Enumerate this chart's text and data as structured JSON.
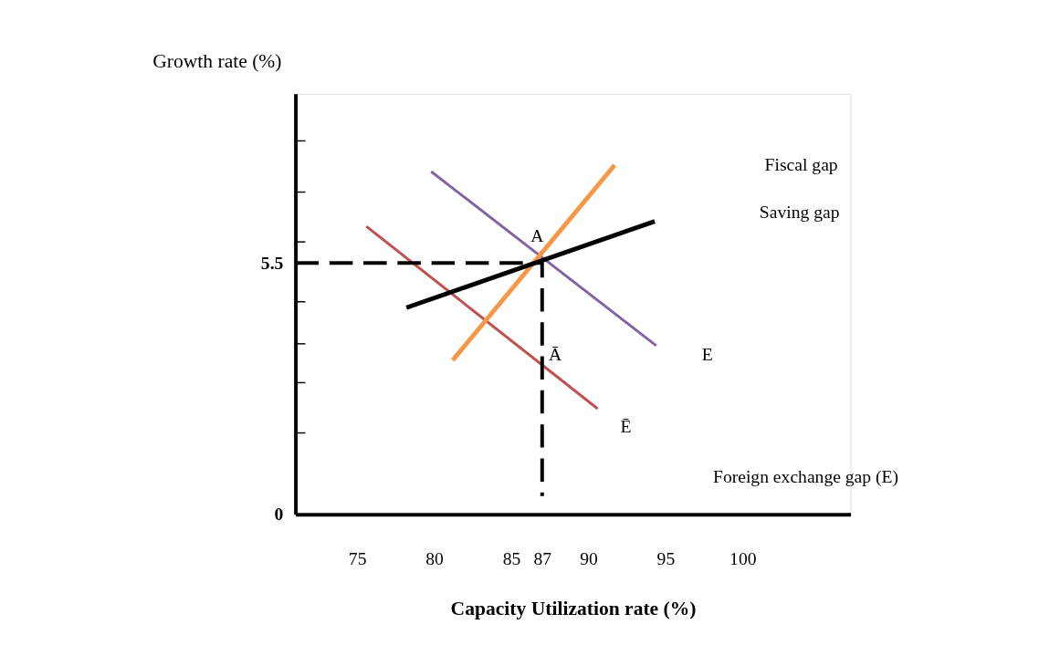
{
  "chart_data": {
    "type": "line",
    "xlabel": "Capacity Utilization rate (%)",
    "ylabel": "Growth rate (%)",
    "xlim": [
      71,
      107
    ],
    "xticks": [
      75,
      80,
      85,
      87,
      90,
      95,
      100
    ],
    "ylim": [
      0,
      9.2
    ],
    "yticks": [
      0,
      {
        "value": 1.78,
        "label": null
      },
      {
        "value": 2.88,
        "label": null
      },
      {
        "value": 3.73,
        "label": null
      },
      {
        "value": 4.65,
        "label": null
      },
      5.5,
      {
        "value": 5.96,
        "label": null
      },
      {
        "value": 7.05,
        "label": null
      },
      {
        "value": 8.17,
        "label": null
      }
    ],
    "grid": false,
    "marker": "none",
    "series": [
      {
        "color": "#8064a2",
        "x": [
          79.8,
          94.4
        ],
        "values": [
          7.5,
          3.69
        ]
      },
      {
        "color": "#c0504d",
        "x": [
          75.6,
          90.6
        ],
        "values": [
          6.3,
          2.31
        ]
      },
      {
        "color": "#f79646",
        "x": [
          81.2,
          91.7
        ],
        "values": [
          3.37,
          7.64
        ]
      },
      {
        "color": "#000000",
        "x": [
          78.2,
          94.3
        ],
        "values": [
          4.52,
          6.41
        ]
      },
      {
        "color": "#000000",
        "line_style": "dashed",
        "x": [
          71,
          87,
          87
        ],
        "values": [
          5.5,
          5.5,
          0.4
        ]
      }
    ],
    "annotations": [
      "A",
      "Ā",
      "E",
      "Ē",
      "Fiscal gap",
      "Saving gap",
      "Foreign exchange gap (E)"
    ]
  }
}
